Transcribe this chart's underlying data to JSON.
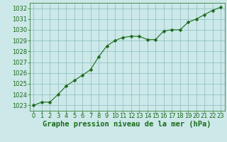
{
  "x": [
    0,
    1,
    2,
    3,
    4,
    5,
    6,
    7,
    8,
    9,
    10,
    11,
    12,
    13,
    14,
    15,
    16,
    17,
    18,
    19,
    20,
    21,
    22,
    23
  ],
  "y": [
    1023.0,
    1023.3,
    1023.3,
    1024.0,
    1024.8,
    1025.3,
    1025.8,
    1026.3,
    1027.5,
    1028.5,
    1029.0,
    1029.3,
    1029.4,
    1029.4,
    1029.1,
    1029.1,
    1029.9,
    1030.0,
    1030.0,
    1030.7,
    1031.0,
    1031.4,
    1031.8,
    1032.1
  ],
  "line_color": "#1a6b1a",
  "marker": "D",
  "marker_size": 2.5,
  "bg_color": "#cce8e8",
  "grid_color": "#8bbcbc",
  "xlabel": "Graphe pression niveau de la mer (hPa)",
  "xlabel_color": "#1a6b1a",
  "xlabel_fontsize": 7.5,
  "tick_color": "#1a6b1a",
  "tick_fontsize": 6.0,
  "ylim": [
    1022.5,
    1032.5
  ],
  "xlim": [
    -0.5,
    23.5
  ],
  "yticks": [
    1023,
    1024,
    1025,
    1026,
    1027,
    1028,
    1029,
    1030,
    1031,
    1032
  ],
  "xticks": [
    0,
    1,
    2,
    3,
    4,
    5,
    6,
    7,
    8,
    9,
    10,
    11,
    12,
    13,
    14,
    15,
    16,
    17,
    18,
    19,
    20,
    21,
    22,
    23
  ]
}
